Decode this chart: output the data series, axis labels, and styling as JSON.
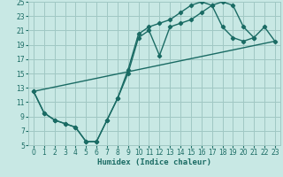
{
  "xlabel": "Humidex (Indice chaleur)",
  "bg_color": "#c8e8e4",
  "grid_color": "#a0c8c4",
  "line_color": "#1a6b64",
  "xlim": [
    -0.5,
    23.5
  ],
  "ylim": [
    5,
    25
  ],
  "xticks": [
    0,
    1,
    2,
    3,
    4,
    5,
    6,
    7,
    8,
    9,
    10,
    11,
    12,
    13,
    14,
    15,
    16,
    17,
    18,
    19,
    20,
    21,
    22,
    23
  ],
  "yticks": [
    5,
    7,
    9,
    11,
    13,
    15,
    17,
    19,
    21,
    23,
    25
  ],
  "curve1_x": [
    0,
    1,
    2,
    3,
    4,
    5,
    6,
    7,
    8,
    9,
    10,
    11,
    12,
    13,
    14,
    15,
    16,
    17,
    18,
    19,
    20,
    21
  ],
  "curve1_y": [
    12.5,
    9.5,
    8.5,
    8.0,
    7.5,
    5.5,
    5.5,
    8.5,
    11.5,
    15.0,
    20.0,
    21.0,
    17.5,
    21.5,
    22.0,
    22.5,
    23.5,
    24.5,
    25.0,
    24.5,
    21.5,
    20.0
  ],
  "curve2_x": [
    0,
    1,
    2,
    3,
    4,
    5,
    6,
    7,
    8,
    9,
    10,
    11,
    12,
    13,
    14,
    15,
    16,
    17,
    18,
    19,
    20,
    21,
    22,
    23
  ],
  "curve2_y": [
    12.5,
    9.5,
    8.5,
    8.0,
    7.5,
    5.5,
    5.5,
    8.5,
    11.5,
    15.5,
    20.5,
    21.5,
    22.0,
    22.5,
    23.5,
    24.5,
    25.0,
    24.5,
    21.5,
    20.0,
    19.5,
    20.0,
    21.5,
    19.5
  ],
  "line_x": [
    0,
    23
  ],
  "line_y": [
    12.5,
    19.5
  ],
  "tick_labelsize": 5.5,
  "xlabel_fontsize": 6.5
}
